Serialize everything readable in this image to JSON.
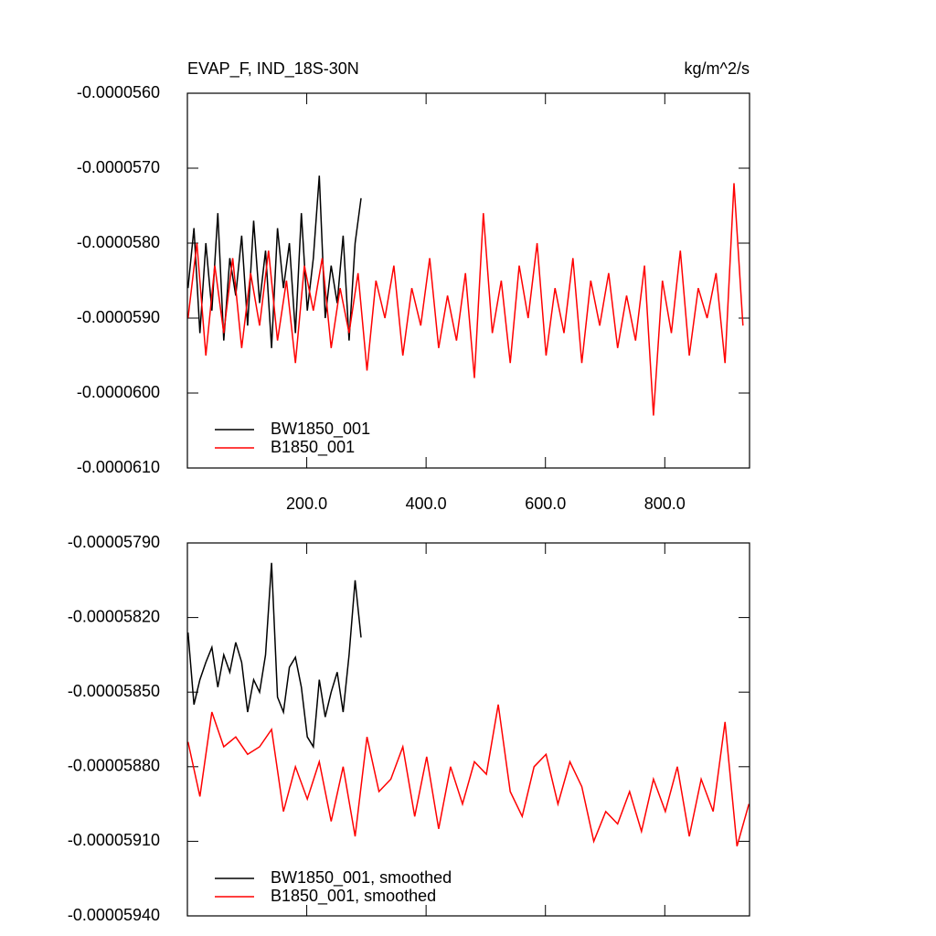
{
  "chart_data": [
    {
      "type": "line",
      "title": "EVAP_F, IND_18S-30N",
      "units": "kg/m^2/s",
      "xlim": [
        0,
        942
      ],
      "xticks": [
        {
          "value": 200,
          "label": "200.0"
        },
        {
          "value": 400,
          "label": "400.0"
        },
        {
          "value": 600,
          "label": "600.0"
        },
        {
          "value": 800,
          "label": "800.0"
        }
      ],
      "ylim": [
        -6.1e-05,
        -5.6e-05
      ],
      "yticks": [
        {
          "value": -6.1e-05,
          "label": "-0.0000610"
        },
        {
          "value": -6e-05,
          "label": "-0.0000600"
        },
        {
          "value": -5.9e-05,
          "label": "-0.0000590"
        },
        {
          "value": -5.8e-05,
          "label": "-0.0000580"
        },
        {
          "value": -5.7e-05,
          "label": "-0.0000570"
        },
        {
          "value": -5.6e-05,
          "label": "-0.0000560"
        }
      ],
      "series": [
        {
          "name": "BW1850_001",
          "color": "#000000",
          "x": [
            1,
            11,
            21,
            31,
            41,
            51,
            61,
            71,
            81,
            91,
            101,
            111,
            121,
            131,
            141,
            151,
            161,
            171,
            181,
            191,
            201,
            211,
            221,
            231,
            241,
            251,
            261,
            271,
            281,
            291
          ],
          "values": [
            -5.86e-05,
            -5.78e-05,
            -5.92e-05,
            -5.8e-05,
            -5.89e-05,
            -5.76e-05,
            -5.93e-05,
            -5.82e-05,
            -5.87e-05,
            -5.79e-05,
            -5.91e-05,
            -5.77e-05,
            -5.88e-05,
            -5.81e-05,
            -5.94e-05,
            -5.78e-05,
            -5.86e-05,
            -5.8e-05,
            -5.92e-05,
            -5.76e-05,
            -5.89e-05,
            -5.82e-05,
            -5.71e-05,
            -5.9e-05,
            -5.83e-05,
            -5.88e-05,
            -5.79e-05,
            -5.93e-05,
            -5.8e-05,
            -5.74e-05
          ]
        },
        {
          "name": "B1850_001",
          "color": "#ff0000",
          "x": [
            1,
            16,
            31,
            46,
            61,
            76,
            91,
            106,
            121,
            136,
            151,
            166,
            181,
            196,
            211,
            226,
            241,
            256,
            271,
            286,
            301,
            316,
            331,
            346,
            361,
            376,
            391,
            406,
            421,
            436,
            451,
            466,
            481,
            496,
            511,
            526,
            541,
            556,
            571,
            586,
            601,
            616,
            631,
            646,
            661,
            676,
            691,
            706,
            721,
            736,
            751,
            766,
            781,
            796,
            811,
            826,
            841,
            856,
            871,
            886,
            901,
            916,
            931
          ],
          "values": [
            -5.9e-05,
            -5.8e-05,
            -5.95e-05,
            -5.83e-05,
            -5.92e-05,
            -5.82e-05,
            -5.94e-05,
            -5.84e-05,
            -5.91e-05,
            -5.81e-05,
            -5.93e-05,
            -5.85e-05,
            -5.96e-05,
            -5.83e-05,
            -5.89e-05,
            -5.82e-05,
            -5.94e-05,
            -5.86e-05,
            -5.92e-05,
            -5.84e-05,
            -5.97e-05,
            -5.85e-05,
            -5.9e-05,
            -5.83e-05,
            -5.95e-05,
            -5.86e-05,
            -5.91e-05,
            -5.82e-05,
            -5.94e-05,
            -5.87e-05,
            -5.93e-05,
            -5.84e-05,
            -5.98e-05,
            -5.76e-05,
            -5.92e-05,
            -5.85e-05,
            -5.96e-05,
            -5.83e-05,
            -5.9e-05,
            -5.8e-05,
            -5.95e-05,
            -5.86e-05,
            -5.92e-05,
            -5.82e-05,
            -5.96e-05,
            -5.85e-05,
            -5.91e-05,
            -5.84e-05,
            -5.94e-05,
            -5.87e-05,
            -5.93e-05,
            -5.83e-05,
            -6.03e-05,
            -5.85e-05,
            -5.92e-05,
            -5.81e-05,
            -5.95e-05,
            -5.86e-05,
            -5.9e-05,
            -5.84e-05,
            -5.96e-05,
            -5.72e-05,
            -5.91e-05
          ]
        }
      ]
    },
    {
      "type": "line",
      "xlim": [
        0,
        942
      ],
      "xticks": [
        200,
        400,
        600,
        800
      ],
      "xtick_labels": false,
      "ylim": [
        -5.94e-05,
        -5.79e-05
      ],
      "yticks": [
        {
          "value": -5.94e-05,
          "label": "-0.00005940"
        },
        {
          "value": -5.91e-05,
          "label": "-0.00005910"
        },
        {
          "value": -5.88e-05,
          "label": "-0.00005880"
        },
        {
          "value": -5.85e-05,
          "label": "-0.00005850"
        },
        {
          "value": -5.82e-05,
          "label": "-0.00005820"
        },
        {
          "value": -5.79e-05,
          "label": "-0.00005790"
        }
      ],
      "series": [
        {
          "name": "BW1850_001, smoothed",
          "color": "#000000",
          "x": [
            1,
            11,
            21,
            31,
            41,
            51,
            61,
            71,
            81,
            91,
            101,
            111,
            121,
            131,
            141,
            151,
            161,
            171,
            181,
            191,
            201,
            211,
            221,
            231,
            241,
            251,
            261,
            271,
            281,
            291
          ],
          "values": [
            -5.826e-05,
            -5.855e-05,
            -5.845e-05,
            -5.838e-05,
            -5.832e-05,
            -5.848e-05,
            -5.835e-05,
            -5.842e-05,
            -5.83e-05,
            -5.838e-05,
            -5.858e-05,
            -5.845e-05,
            -5.85e-05,
            -5.835e-05,
            -5.798e-05,
            -5.852e-05,
            -5.858e-05,
            -5.84e-05,
            -5.836e-05,
            -5.848e-05,
            -5.868e-05,
            -5.872e-05,
            -5.845e-05,
            -5.86e-05,
            -5.85e-05,
            -5.842e-05,
            -5.858e-05,
            -5.835e-05,
            -5.805e-05,
            -5.828e-05
          ]
        },
        {
          "name": "B1850_001, smoothed",
          "color": "#ff0000",
          "x": [
            1,
            21,
            41,
            61,
            81,
            101,
            121,
            141,
            161,
            181,
            201,
            221,
            241,
            261,
            281,
            301,
            321,
            341,
            361,
            381,
            401,
            421,
            441,
            461,
            481,
            501,
            521,
            541,
            561,
            581,
            601,
            621,
            641,
            661,
            681,
            701,
            721,
            741,
            761,
            781,
            801,
            821,
            841,
            861,
            881,
            901,
            921,
            941
          ],
          "values": [
            -5.87e-05,
            -5.892e-05,
            -5.858e-05,
            -5.872e-05,
            -5.868e-05,
            -5.875e-05,
            -5.872e-05,
            -5.865e-05,
            -5.898e-05,
            -5.88e-05,
            -5.893e-05,
            -5.878e-05,
            -5.902e-05,
            -5.88e-05,
            -5.908e-05,
            -5.868e-05,
            -5.89e-05,
            -5.885e-05,
            -5.872e-05,
            -5.9e-05,
            -5.876e-05,
            -5.905e-05,
            -5.88e-05,
            -5.895e-05,
            -5.878e-05,
            -5.883e-05,
            -5.855e-05,
            -5.89e-05,
            -5.9e-05,
            -5.88e-05,
            -5.875e-05,
            -5.895e-05,
            -5.878e-05,
            -5.888e-05,
            -5.91e-05,
            -5.898e-05,
            -5.903e-05,
            -5.89e-05,
            -5.906e-05,
            -5.885e-05,
            -5.898e-05,
            -5.88e-05,
            -5.908e-05,
            -5.885e-05,
            -5.898e-05,
            -5.862e-05,
            -5.912e-05,
            -5.895e-05
          ]
        }
      ]
    }
  ]
}
